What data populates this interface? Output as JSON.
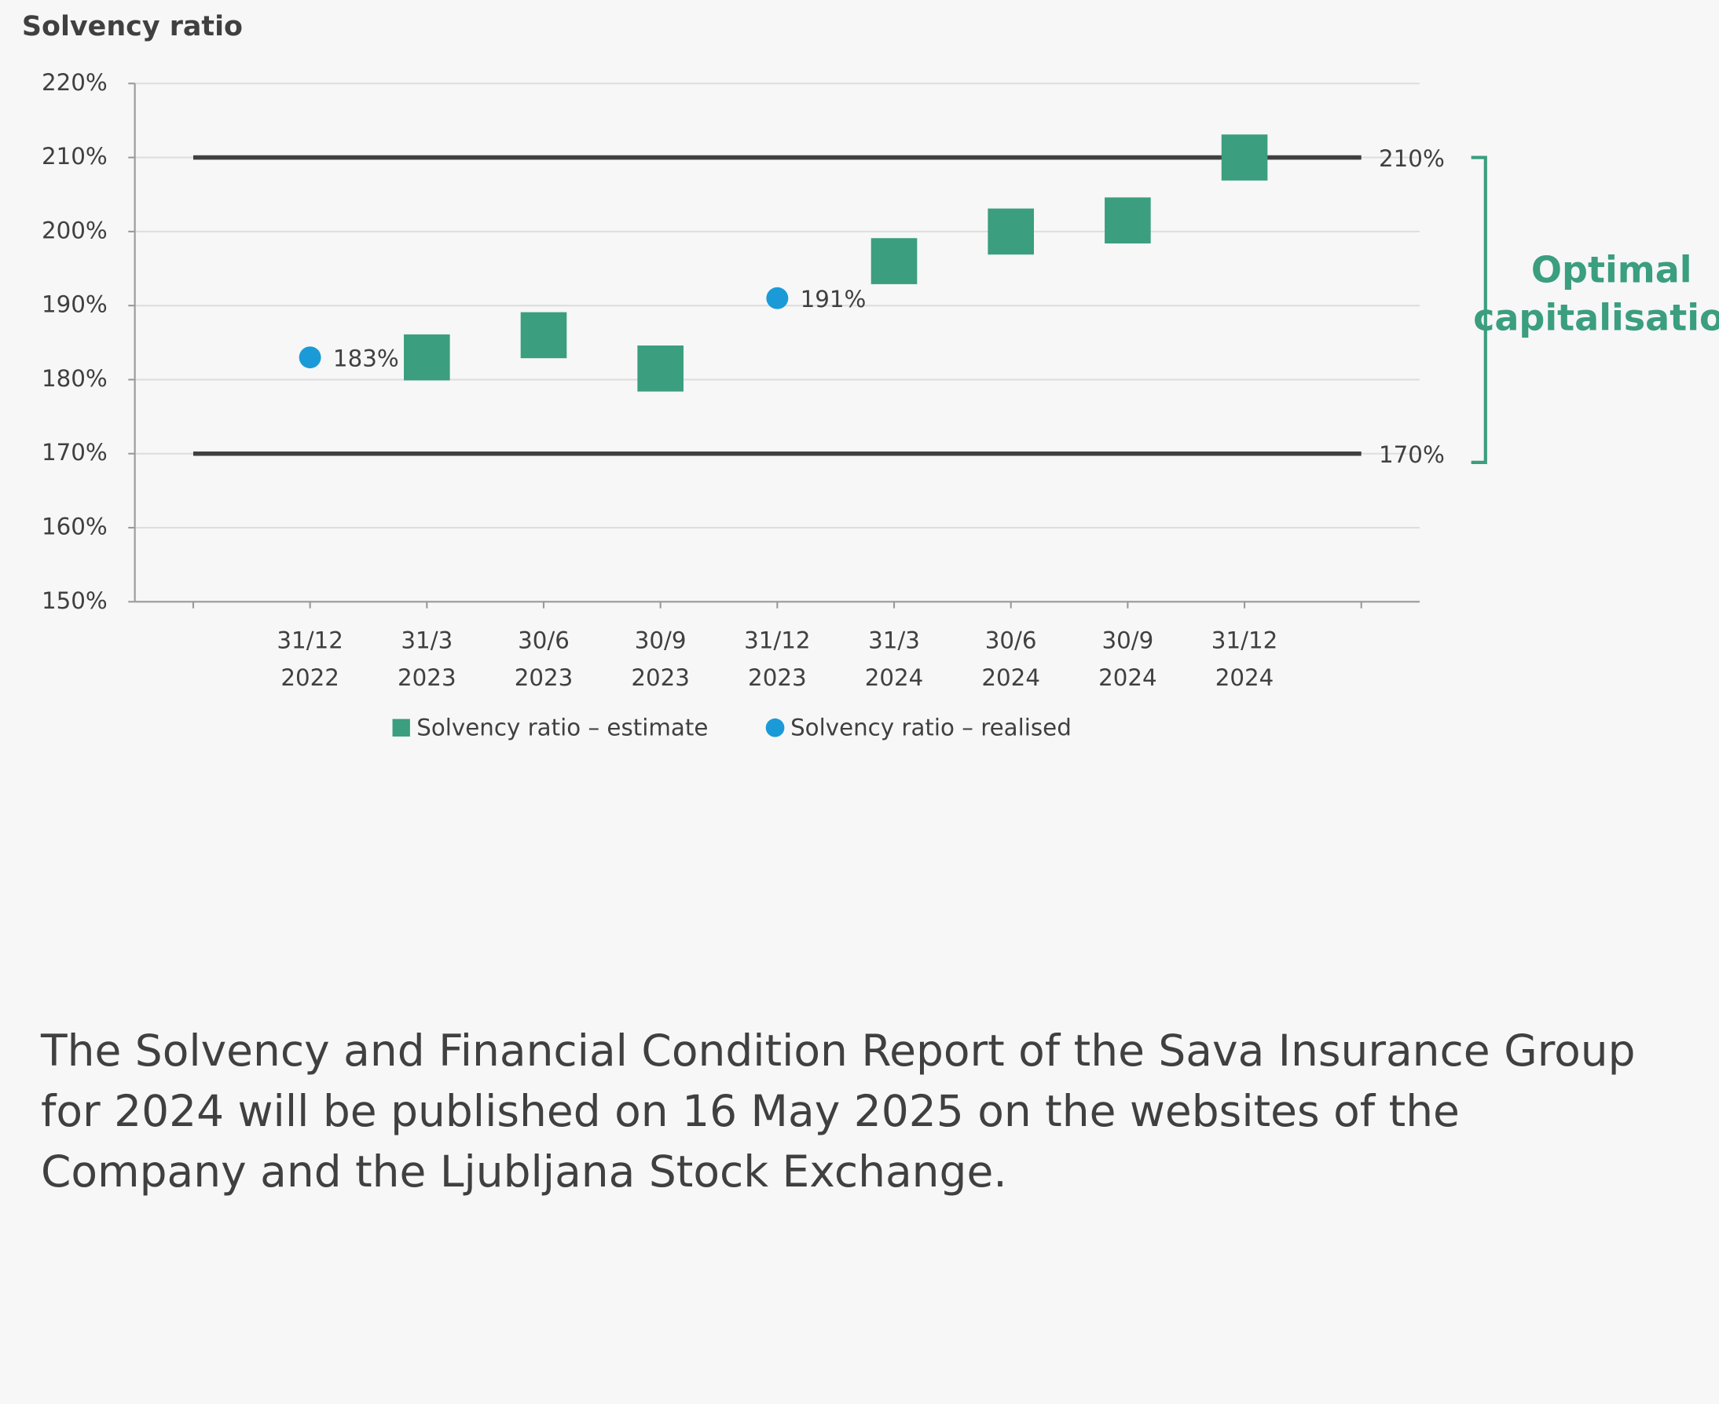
{
  "chart_data": {
    "type": "scatter",
    "title": "Solvency ratio",
    "categories": [
      null,
      "31/12 2022",
      "31/3 2023",
      "30/6 2023",
      "30/9 2023",
      "31/12 2023",
      "31/3 2024",
      "30/6 2024",
      "30/9 2024",
      "31/12 2024",
      null
    ],
    "series": [
      {
        "name": "Solvency ratio – estimate",
        "color": "#3a9e7f",
        "marker": "square",
        "values": [
          null,
          null,
          183,
          186,
          181.5,
          null,
          196,
          200,
          201.5,
          210,
          null
        ]
      },
      {
        "name": "Solvency ratio – realised",
        "color": "#1a9bd7",
        "marker": "circle",
        "values": [
          null,
          183,
          null,
          null,
          null,
          191,
          null,
          null,
          null,
          null,
          null
        ],
        "value_labels": [
          null,
          "183%",
          null,
          null,
          null,
          "191%",
          null,
          null,
          null,
          null,
          null
        ]
      }
    ],
    "reference_lines": {
      "values": [
        210,
        170
      ],
      "value_labels": [
        "210%",
        "170%"
      ],
      "color": "#404040"
    },
    "annotation": "Optimal capitalisation",
    "ylim": [
      150,
      220
    ],
    "yticks": [
      {
        "value": 150,
        "label": "150%"
      },
      {
        "value": 160,
        "label": "160%"
      },
      {
        "value": 170,
        "label": "170%"
      },
      {
        "value": 180,
        "label": "180%"
      },
      {
        "value": 190,
        "label": "190%"
      },
      {
        "value": 200,
        "label": "200%"
      },
      {
        "value": 210,
        "label": "210%"
      },
      {
        "value": 220,
        "label": "220%"
      }
    ],
    "grid": true,
    "legend": "bottom"
  },
  "text": "The Solvency and Financial Condition Report of the Sava Insurance Group for 2024 will be published on 16 May 2025 on the websites of the Company and the Ljubljana Stock Exchange."
}
